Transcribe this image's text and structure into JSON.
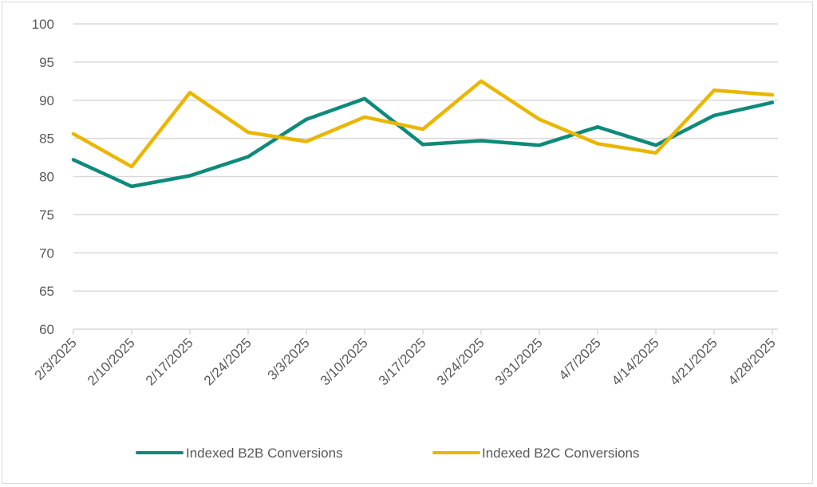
{
  "chart_data": {
    "type": "line",
    "title": "",
    "xlabel": "",
    "ylabel": "",
    "ylim": [
      60,
      100
    ],
    "y_ticks": [
      60,
      65,
      70,
      75,
      80,
      85,
      90,
      95,
      100
    ],
    "grid": true,
    "legend_position": "bottom",
    "categories": [
      "2/3/2025",
      "2/10/2025",
      "2/17/2025",
      "2/24/2025",
      "3/3/2025",
      "3/10/2025",
      "3/17/2025",
      "3/24/2025",
      "3/31/2025",
      "4/7/2025",
      "4/14/2025",
      "4/21/2025",
      "4/28/2025"
    ],
    "series": [
      {
        "name": "Indexed B2B Conversions",
        "color": "#0E8A7A",
        "values": [
          82.2,
          78.7,
          80.1,
          82.6,
          87.5,
          90.2,
          84.2,
          84.7,
          84.1,
          86.5,
          84.1,
          88.0,
          89.7
        ]
      },
      {
        "name": "Indexed B2C Conversions",
        "color": "#EAB600",
        "values": [
          85.6,
          81.3,
          91.0,
          85.8,
          84.6,
          87.8,
          86.2,
          92.5,
          87.5,
          84.3,
          83.1,
          91.3,
          90.7
        ]
      }
    ]
  }
}
